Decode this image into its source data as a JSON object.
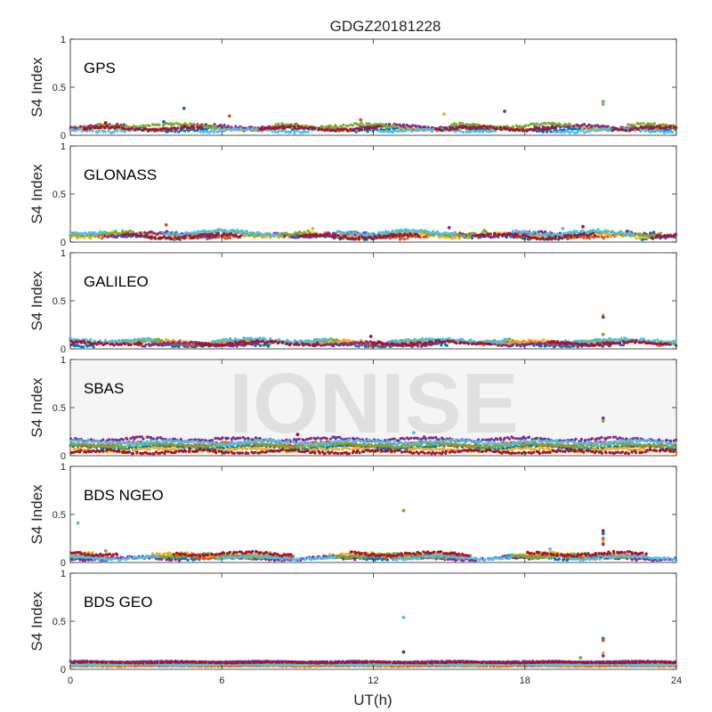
{
  "chart_data": {
    "type": "scatter",
    "title": "GDGZ20181228",
    "xlabel": "UT(h)",
    "ylabel": "S4 Index",
    "xlim": [
      0,
      24
    ],
    "ylim": [
      0,
      1
    ],
    "xticks": [
      0,
      6,
      12,
      18,
      24
    ],
    "yticks": [
      0,
      0.5,
      1
    ],
    "ytick_labels": [
      "0",
      "0.5",
      "1"
    ],
    "watermark": "IONISE",
    "series_colors": [
      "#0072BD",
      "#D95319",
      "#EDB120",
      "#7E2F8E",
      "#77AC30",
      "#4DBEEE",
      "#A2142F"
    ],
    "panels": [
      {
        "label": "GPS",
        "baseline": [
          0.06,
          0.07,
          0.08,
          0.09,
          0.1,
          0.05,
          0.07
        ],
        "spread": 0.025,
        "outliers": [
          [
            4.5,
            0.28
          ],
          [
            6.3,
            0.2
          ],
          [
            14.8,
            0.22
          ],
          [
            17.2,
            0.25
          ],
          [
            21.1,
            0.35
          ],
          [
            21.1,
            0.32
          ],
          [
            1.4,
            0.13
          ],
          [
            3.7,
            0.14
          ],
          [
            11.5,
            0.16
          ]
        ]
      },
      {
        "label": "GLONASS",
        "baseline": [
          0.05,
          0.06,
          0.07,
          0.08,
          0.09,
          0.1,
          0.06
        ],
        "spread": 0.03,
        "outliers": [
          [
            3.8,
            0.18
          ],
          [
            9.6,
            0.14
          ],
          [
            15.0,
            0.15
          ],
          [
            16.4,
            0.12
          ],
          [
            19.5,
            0.14
          ],
          [
            20.3,
            0.16
          ],
          [
            23.1,
            0.1
          ]
        ]
      },
      {
        "label": "GALILEO",
        "baseline": [
          0.04,
          0.06,
          0.07,
          0.05,
          0.08,
          0.09,
          0.06
        ],
        "spread": 0.025,
        "outliers": [
          [
            21.1,
            0.35
          ],
          [
            21.1,
            0.33
          ],
          [
            21.1,
            0.15
          ],
          [
            0.0,
            0.11
          ],
          [
            11.9,
            0.13
          ]
        ]
      },
      {
        "label": "SBAS",
        "baseline": [
          0.09,
          0.12,
          0.06,
          0.17,
          0.11,
          0.14,
          0.04
        ],
        "spread": 0.025,
        "outliers": [
          [
            21.1,
            0.39
          ],
          [
            21.1,
            0.36
          ],
          [
            13.6,
            0.24
          ],
          [
            9.0,
            0.22
          ]
        ]
      },
      {
        "label": "BDS NGEO",
        "baseline": [
          0.05,
          0.06,
          0.08,
          0.04,
          0.07,
          0.05,
          0.09
        ],
        "spread": 0.025,
        "outliers": [
          [
            13.2,
            0.54
          ],
          [
            0.3,
            0.41
          ],
          [
            21.1,
            0.33
          ],
          [
            21.1,
            0.3
          ],
          [
            21.1,
            0.25
          ],
          [
            21.1,
            0.22
          ],
          [
            21.1,
            0.19
          ],
          [
            1.4,
            0.12
          ],
          [
            19.0,
            0.14
          ]
        ]
      },
      {
        "label": "BDS GEO",
        "baseline": [
          0.04,
          0.035,
          0.045,
          0.08,
          0.06,
          0.05,
          0.07
        ],
        "spread": 0.006,
        "outliers": [
          [
            13.2,
            0.54
          ],
          [
            13.2,
            0.18
          ],
          [
            21.1,
            0.32
          ],
          [
            21.1,
            0.3
          ],
          [
            21.1,
            0.17
          ],
          [
            21.1,
            0.14
          ],
          [
            20.2,
            0.12
          ]
        ]
      }
    ]
  }
}
